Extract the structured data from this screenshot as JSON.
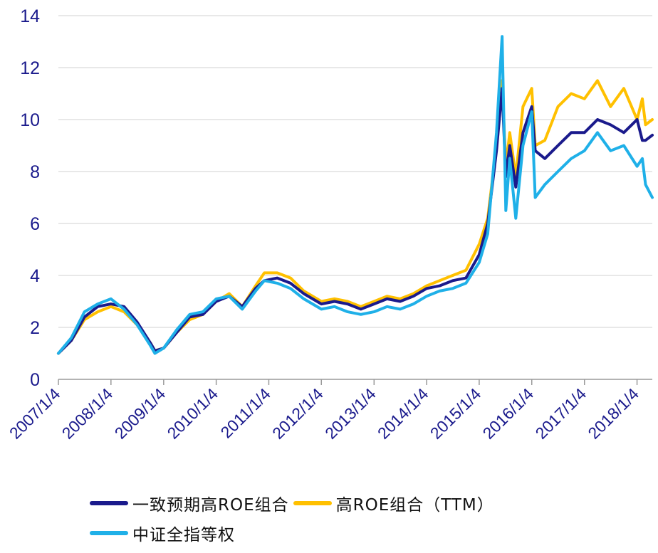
{
  "chart_data": {
    "type": "line",
    "title": "",
    "xlabel": "",
    "ylabel": "",
    "ylim": [
      0,
      14
    ],
    "yticks": [
      0,
      2,
      4,
      6,
      8,
      10,
      12,
      14
    ],
    "xlim": [
      "2007/1/4",
      "2018/4/20"
    ],
    "xticks": [
      "2007/1/4",
      "2008/1/4",
      "2009/1/4",
      "2010/1/4",
      "2011/1/4",
      "2012/1/4",
      "2013/1/4",
      "2014/1/4",
      "2015/1/4",
      "2016/1/4",
      "2017/1/4",
      "2018/1/4"
    ],
    "grid": "horizontal",
    "legend_position": "bottom",
    "x": [
      "2007/1/4",
      "2007/4/4",
      "2007/7/4",
      "2007/10/4",
      "2008/1/4",
      "2008/4/4",
      "2008/7/4",
      "2008/10/4",
      "2008/11/4",
      "2009/1/4",
      "2009/4/4",
      "2009/7/4",
      "2009/10/4",
      "2010/1/4",
      "2010/4/4",
      "2010/7/4",
      "2010/10/4",
      "2010/12/4",
      "2011/3/4",
      "2011/6/4",
      "2011/9/4",
      "2012/1/4",
      "2012/4/4",
      "2012/7/4",
      "2012/10/4",
      "2013/1/4",
      "2013/4/4",
      "2013/7/4",
      "2013/10/4",
      "2014/1/4",
      "2014/4/4",
      "2014/7/4",
      "2014/10/4",
      "2015/1/4",
      "2015/3/4",
      "2015/5/4",
      "2015/6/12",
      "2015/7/8",
      "2015/8/4",
      "2015/9/15",
      "2015/11/4",
      "2016/1/4",
      "2016/1/28",
      "2016/4/4",
      "2016/7/4",
      "2016/10/4",
      "2017/1/4",
      "2017/4/4",
      "2017/7/4",
      "2017/10/4",
      "2018/1/4",
      "2018/2/10",
      "2018/3/4",
      "2018/4/20"
    ],
    "series": [
      {
        "name": "一致预期高ROE组合",
        "color": "#1a1a8c",
        "values": [
          1.0,
          1.5,
          2.4,
          2.8,
          2.9,
          2.8,
          2.2,
          1.4,
          1.1,
          1.2,
          1.8,
          2.4,
          2.5,
          3.0,
          3.2,
          2.8,
          3.5,
          3.8,
          3.9,
          3.7,
          3.3,
          2.9,
          3.0,
          2.9,
          2.7,
          2.9,
          3.1,
          3.0,
          3.2,
          3.5,
          3.6,
          3.8,
          3.9,
          4.8,
          6.0,
          8.8,
          11.2,
          7.8,
          9.0,
          7.4,
          9.5,
          10.5,
          8.8,
          8.5,
          9.0,
          9.5,
          9.5,
          10.0,
          9.8,
          9.5,
          10.0,
          9.2,
          9.2,
          9.4
        ]
      },
      {
        "name": "高ROE组合（TTM）",
        "color": "#ffc000",
        "values": [
          1.0,
          1.5,
          2.3,
          2.6,
          2.8,
          2.6,
          2.1,
          1.4,
          1.1,
          1.2,
          1.8,
          2.3,
          2.5,
          3.0,
          3.3,
          2.8,
          3.6,
          4.1,
          4.1,
          3.9,
          3.4,
          3.0,
          3.1,
          3.0,
          2.8,
          3.0,
          3.2,
          3.1,
          3.3,
          3.6,
          3.8,
          4.0,
          4.2,
          5.2,
          6.2,
          9.0,
          11.5,
          8.2,
          9.5,
          7.8,
          10.5,
          11.2,
          9.0,
          9.2,
          10.5,
          11.0,
          10.8,
          11.5,
          10.5,
          11.2,
          10.0,
          10.8,
          9.8,
          10.0
        ]
      },
      {
        "name": "中证全指等权",
        "color": "#1fb0e8",
        "values": [
          1.0,
          1.6,
          2.6,
          2.9,
          3.1,
          2.7,
          2.1,
          1.3,
          1.0,
          1.2,
          1.9,
          2.5,
          2.6,
          3.1,
          3.2,
          2.7,
          3.4,
          3.8,
          3.7,
          3.5,
          3.1,
          2.7,
          2.8,
          2.6,
          2.5,
          2.6,
          2.8,
          2.7,
          2.9,
          3.2,
          3.4,
          3.5,
          3.7,
          4.5,
          5.6,
          9.5,
          13.2,
          6.5,
          8.5,
          6.2,
          9.0,
          10.3,
          7.0,
          7.5,
          8.0,
          8.5,
          8.8,
          9.5,
          8.8,
          9.0,
          8.2,
          8.5,
          7.5,
          7.0
        ]
      }
    ]
  }
}
